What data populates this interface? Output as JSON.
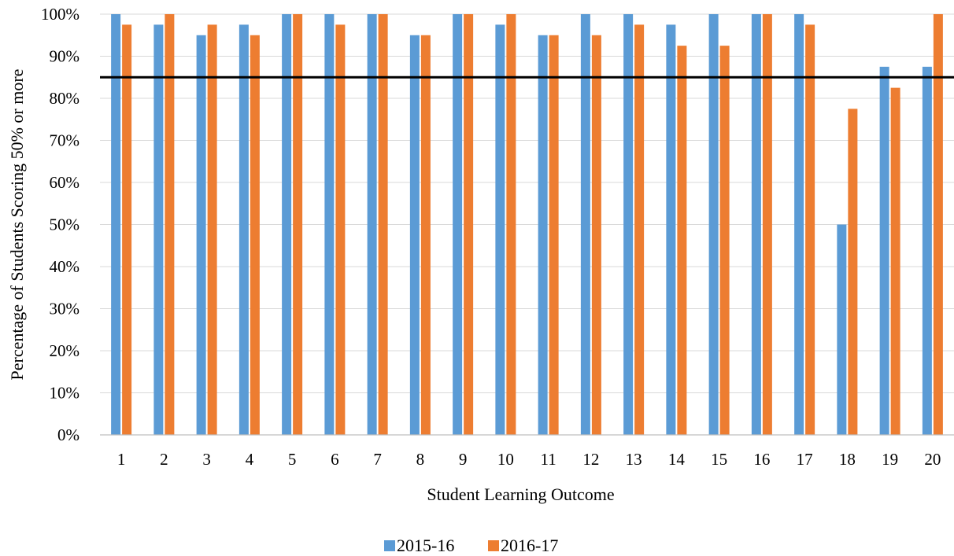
{
  "chart_data": {
    "type": "bar",
    "xlabel": "Student Learning Outcome",
    "ylabel": "Percentage of Students Scoring 50% or more",
    "categories": [
      "1",
      "2",
      "3",
      "4",
      "5",
      "6",
      "7",
      "8",
      "9",
      "10",
      "11",
      "12",
      "13",
      "14",
      "15",
      "16",
      "17",
      "18",
      "19",
      "20"
    ],
    "series": [
      {
        "name": "2015-16",
        "color": "#5B9BD5",
        "values": [
          100,
          97.5,
          95,
          97.5,
          100,
          100,
          100,
          95,
          100,
          97.5,
          95,
          100,
          100,
          97.5,
          100,
          100,
          100,
          50,
          87.5,
          87.5
        ]
      },
      {
        "name": "2016-17",
        "color": "#ED7D31",
        "values": [
          97.5,
          100,
          97.5,
          95,
          100,
          97.5,
          100,
          95,
          100,
          100,
          95,
          95,
          97.5,
          92.5,
          92.5,
          100,
          97.5,
          77.5,
          82.5,
          100
        ]
      }
    ],
    "ylim": [
      0,
      100
    ],
    "yticks": [
      "0%",
      "10%",
      "20%",
      "30%",
      "40%",
      "50%",
      "60%",
      "70%",
      "80%",
      "90%",
      "100%"
    ],
    "reference_line": 85,
    "grid": true,
    "legend_position": "bottom"
  }
}
